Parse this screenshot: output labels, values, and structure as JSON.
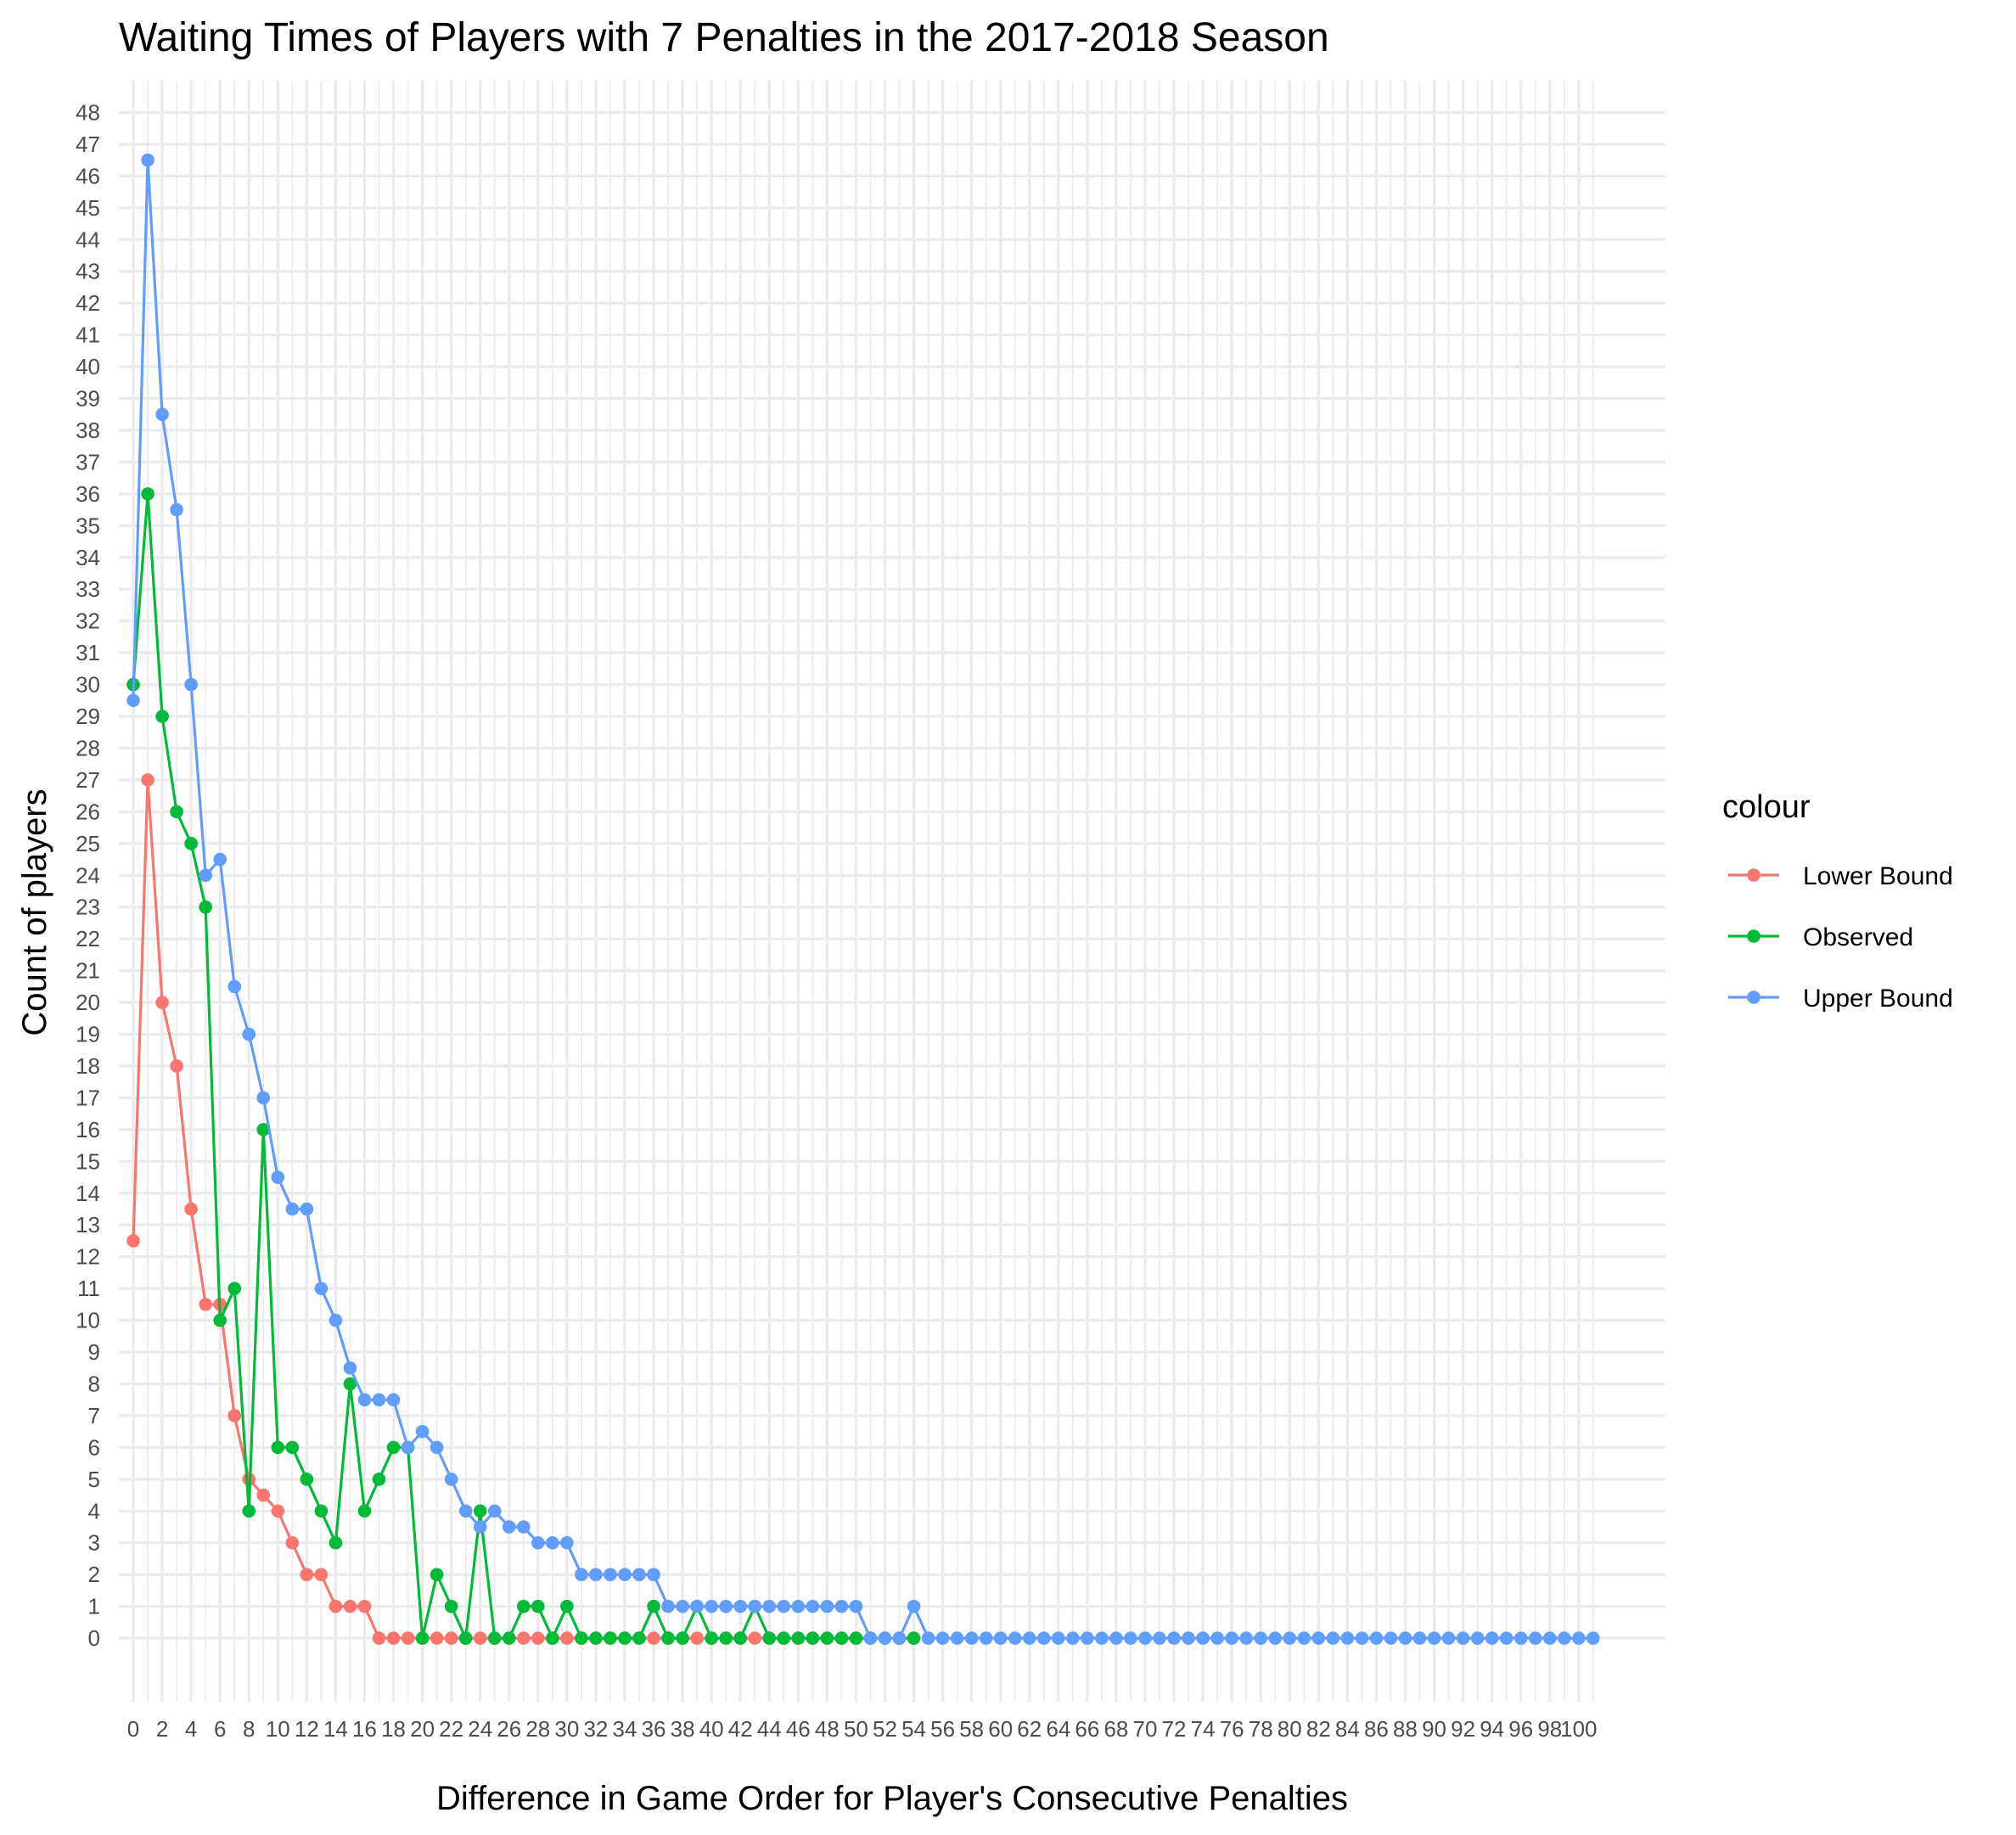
{
  "chart_data": {
    "type": "line",
    "title": "Waiting Times of Players with 7 Penalties in the 2017-2018 Season",
    "xlabel": "Difference in Game Order for Player's Consecutive Penalties",
    "ylabel": "Count of players",
    "x_tick_labels": [
      "0",
      "2",
      "4",
      "6",
      "8",
      "10",
      "12",
      "14",
      "16",
      "18",
      "20",
      "22",
      "24",
      "26",
      "28",
      "30",
      "32",
      "34",
      "36",
      "38",
      "40",
      "42",
      "44",
      "46",
      "48",
      "50",
      "52",
      "54",
      "56",
      "58",
      "60",
      "62",
      "64",
      "66",
      "68",
      "70",
      "72",
      "74",
      "76",
      "78",
      "80",
      "82",
      "84",
      "86",
      "88",
      "90",
      "92",
      "94",
      "96",
      "98",
      "100"
    ],
    "y_tick_labels": [
      "0",
      "1",
      "2",
      "3",
      "4",
      "5",
      "6",
      "7",
      "8",
      "9",
      "10",
      "11",
      "12",
      "13",
      "14",
      "15",
      "16",
      "17",
      "18",
      "19",
      "20",
      "21",
      "22",
      "23",
      "24",
      "25",
      "26",
      "27",
      "28",
      "29",
      "30",
      "31",
      "32",
      "33",
      "34",
      "35",
      "36",
      "37",
      "38",
      "39",
      "40",
      "41",
      "42",
      "43",
      "44",
      "45",
      "46",
      "47",
      "48"
    ],
    "xlim": [
      -1,
      106
    ],
    "ylim": [
      -2,
      49
    ],
    "grid": true,
    "legend": {
      "title": "colour",
      "position": "right"
    },
    "series": [
      {
        "name": "Lower Bound",
        "color": "#F8766D",
        "x": [
          0,
          1,
          2,
          3,
          4,
          5,
          6,
          7,
          8,
          9,
          10,
          11,
          12,
          13,
          14,
          15,
          16,
          17,
          18,
          19,
          20,
          21,
          22,
          23,
          24,
          25,
          26,
          27,
          28,
          29,
          30,
          31,
          32,
          33,
          34,
          35,
          36,
          37,
          38,
          39,
          40,
          41,
          42,
          43,
          44,
          45,
          46,
          47,
          48,
          49,
          50,
          54
        ],
        "values": [
          12.5,
          27,
          20,
          18,
          13.5,
          10.5,
          10.5,
          7,
          5,
          4.5,
          4,
          3,
          2,
          2,
          1,
          1,
          1,
          0,
          0,
          0,
          0,
          0,
          0,
          0,
          0,
          0,
          0,
          0,
          0,
          0,
          0,
          0,
          0,
          0,
          0,
          0,
          0,
          0,
          0,
          0,
          0,
          0,
          0,
          0,
          0,
          0,
          0,
          0,
          0,
          0,
          0,
          0
        ]
      },
      {
        "name": "Observed",
        "color": "#00BA38",
        "x": [
          0,
          1,
          2,
          3,
          4,
          5,
          6,
          7,
          8,
          9,
          10,
          11,
          12,
          13,
          14,
          15,
          16,
          17,
          18,
          19,
          20,
          21,
          22,
          23,
          24,
          25,
          26,
          27,
          28,
          29,
          30,
          31,
          32,
          33,
          34,
          35,
          36,
          37,
          38,
          39,
          40,
          41,
          42,
          43,
          44,
          45,
          46,
          47,
          48,
          49,
          50,
          51,
          52,
          53,
          54
        ],
        "values": [
          30,
          36,
          29,
          26,
          25,
          23,
          10,
          11,
          4,
          16,
          6,
          6,
          5,
          4,
          3,
          8,
          4,
          5,
          6,
          6,
          0,
          2,
          1,
          0,
          4,
          0,
          0,
          1,
          1,
          0,
          1,
          0,
          0,
          0,
          0,
          0,
          1,
          0,
          0,
          1,
          0,
          0,
          0,
          1,
          0,
          0,
          0,
          0,
          0,
          0,
          0,
          0,
          0,
          0,
          0
        ]
      },
      {
        "name": "Upper Bound",
        "color": "#619CFF",
        "x": [
          0,
          1,
          2,
          3,
          4,
          5,
          6,
          7,
          8,
          9,
          10,
          11,
          12,
          13,
          14,
          15,
          16,
          17,
          18,
          19,
          20,
          21,
          22,
          23,
          24,
          25,
          26,
          27,
          28,
          29,
          30,
          31,
          32,
          33,
          34,
          35,
          36,
          37,
          38,
          39,
          40,
          41,
          42,
          43,
          44,
          45,
          46,
          47,
          48,
          49,
          50,
          51,
          52,
          53,
          54,
          55,
          56,
          57,
          58,
          59,
          60,
          61,
          62,
          63,
          64,
          65,
          66,
          67,
          68,
          69,
          70,
          71,
          72,
          73,
          74,
          75,
          76,
          77,
          78,
          79,
          80,
          81,
          82,
          83,
          84,
          85,
          86,
          87,
          88,
          89,
          90,
          91,
          92,
          93,
          94,
          95,
          96,
          97,
          98,
          99,
          100,
          101
        ],
        "values": [
          29.5,
          46.5,
          38.5,
          35.5,
          30,
          24,
          24.5,
          20.5,
          19,
          17,
          14.5,
          13.5,
          13.5,
          11,
          10,
          8.5,
          7.5,
          7.5,
          7.5,
          6,
          6.5,
          6,
          5,
          4,
          3.5,
          4,
          3.5,
          3.5,
          3,
          3,
          3,
          2,
          2,
          2,
          2,
          2,
          2,
          1,
          1,
          1,
          1,
          1,
          1,
          1,
          1,
          1,
          1,
          1,
          1,
          1,
          1,
          0,
          0,
          0,
          1,
          0,
          0,
          0,
          0,
          0,
          0,
          0,
          0,
          0,
          0,
          0,
          0,
          0,
          0,
          0,
          0,
          0,
          0,
          0,
          0,
          0,
          0,
          0,
          0,
          0,
          0,
          0,
          0,
          0,
          0,
          0,
          0,
          0,
          0,
          0,
          0,
          0,
          0,
          0,
          0,
          0,
          0,
          0,
          0,
          0,
          0,
          0
        ]
      }
    ]
  }
}
